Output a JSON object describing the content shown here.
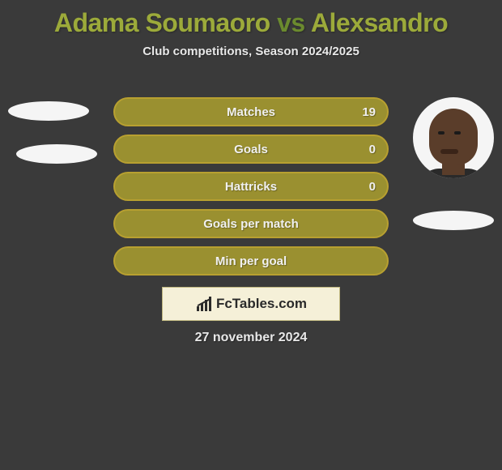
{
  "title": {
    "player1": "Adama Soumaoro",
    "vs": "vs",
    "player2": "Alexsandro",
    "p1_color": "#9caa3a",
    "vs_color": "#6b8a2e",
    "p2_color": "#9caa3a"
  },
  "subtitle": "Club competitions, Season 2024/2025",
  "background_color": "#3a3a3a",
  "avatars": {
    "left_bg": "#f5f5f5",
    "right_bg": "#f5f5f5",
    "right_skin": "#5a3d2a"
  },
  "flags": {
    "left1_bg": "#f5f5f5",
    "left2_bg": "#f5f5f5",
    "right_bg": "#f5f5f5"
  },
  "stats": {
    "bar_border": "#b8a030",
    "bar_bg": "#9a9030",
    "text_color": "#f0f0f0",
    "rows": [
      {
        "label": "Matches",
        "right_value": "19"
      },
      {
        "label": "Goals",
        "right_value": "0"
      },
      {
        "label": "Hattricks",
        "right_value": "0"
      },
      {
        "label": "Goals per match",
        "right_value": ""
      },
      {
        "label": "Min per goal",
        "right_value": ""
      }
    ]
  },
  "logo": {
    "text": "FcTables.com",
    "bg": "#f5f0d8",
    "border": "#c0b880",
    "icon_color": "#2a2a2a",
    "text_color": "#2a2a2a"
  },
  "date": "27 november 2024"
}
